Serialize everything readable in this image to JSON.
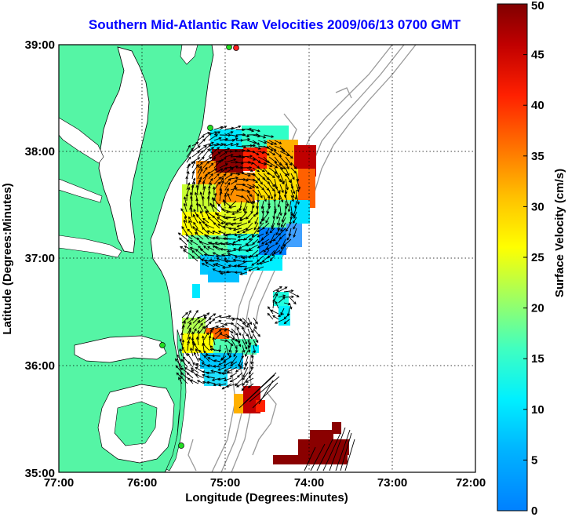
{
  "title": "Southern Mid-Atlantic Raw Velocities 2009/06/13 0700 GMT",
  "x_axis": {
    "label": "Longitude (Degrees:Minutes)",
    "ticks": [
      "77:00",
      "76:00",
      "75:00",
      "74:00",
      "73:00",
      "72:00"
    ]
  },
  "y_axis": {
    "label": "Latitude (Degrees:Minutes)",
    "ticks": [
      "35:00",
      "36:00",
      "37:00",
      "38:00",
      "39:00"
    ]
  },
  "colorbar": {
    "label": "Surface Velocity (cm/s)",
    "ticks": [
      "0",
      "5",
      "10",
      "15",
      "20",
      "25",
      "30",
      "35",
      "40",
      "45",
      "50"
    ],
    "range": [
      0,
      50
    ],
    "colormap": "jet"
  },
  "map": {
    "lon_range": [
      -77,
      -72
    ],
    "lat_range": [
      35,
      39
    ],
    "land_color": "#55f5a5",
    "grid": "dotted",
    "bathymetry_color": "#999999",
    "station_marker_color": "#22dd22"
  }
}
